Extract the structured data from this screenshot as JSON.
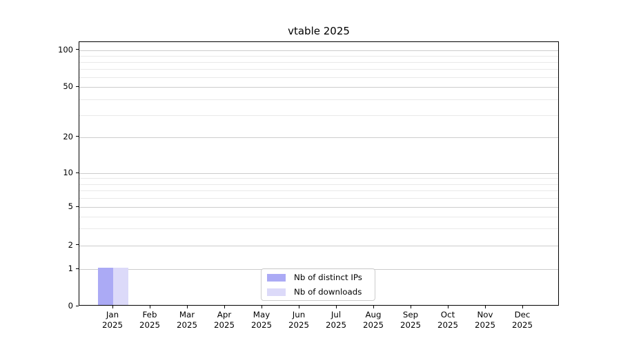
{
  "chart_data": {
    "type": "bar",
    "title": "vtable 2025",
    "categories": [
      "Jan",
      "Feb",
      "Mar",
      "Apr",
      "May",
      "Jun",
      "Jul",
      "Aug",
      "Sep",
      "Oct",
      "Nov",
      "Dec"
    ],
    "category_year": "2025",
    "series": [
      {
        "name": "Nb of distinct IPs",
        "color": "#abaaf5",
        "values": [
          1,
          0,
          0,
          0,
          0,
          0,
          0,
          0,
          0,
          0,
          0,
          0
        ]
      },
      {
        "name": "Nb of downloads",
        "color": "#dcdaf9",
        "values": [
          1,
          0,
          0,
          0,
          0,
          0,
          0,
          0,
          0,
          0,
          0,
          0
        ]
      }
    ],
    "y_axis": {
      "scale": "symlog",
      "major_ticks": [
        0,
        1,
        2,
        5,
        10,
        20,
        50,
        100
      ],
      "minor_ticks": [
        3,
        4,
        6,
        7,
        8,
        9,
        30,
        40,
        60,
        70,
        80,
        90
      ],
      "range": [
        0,
        110
      ]
    },
    "x_axis": {
      "label_lines": 2
    },
    "legend": {
      "position": "bottom-center",
      "entries": [
        "Nb of distinct IPs",
        "Nb of downloads"
      ]
    },
    "grid": true,
    "colors": {
      "grid_major": "#cccccc",
      "grid_minor": "#e9e9e9",
      "spine": "#000000",
      "legend_border": "#cccccc"
    }
  }
}
